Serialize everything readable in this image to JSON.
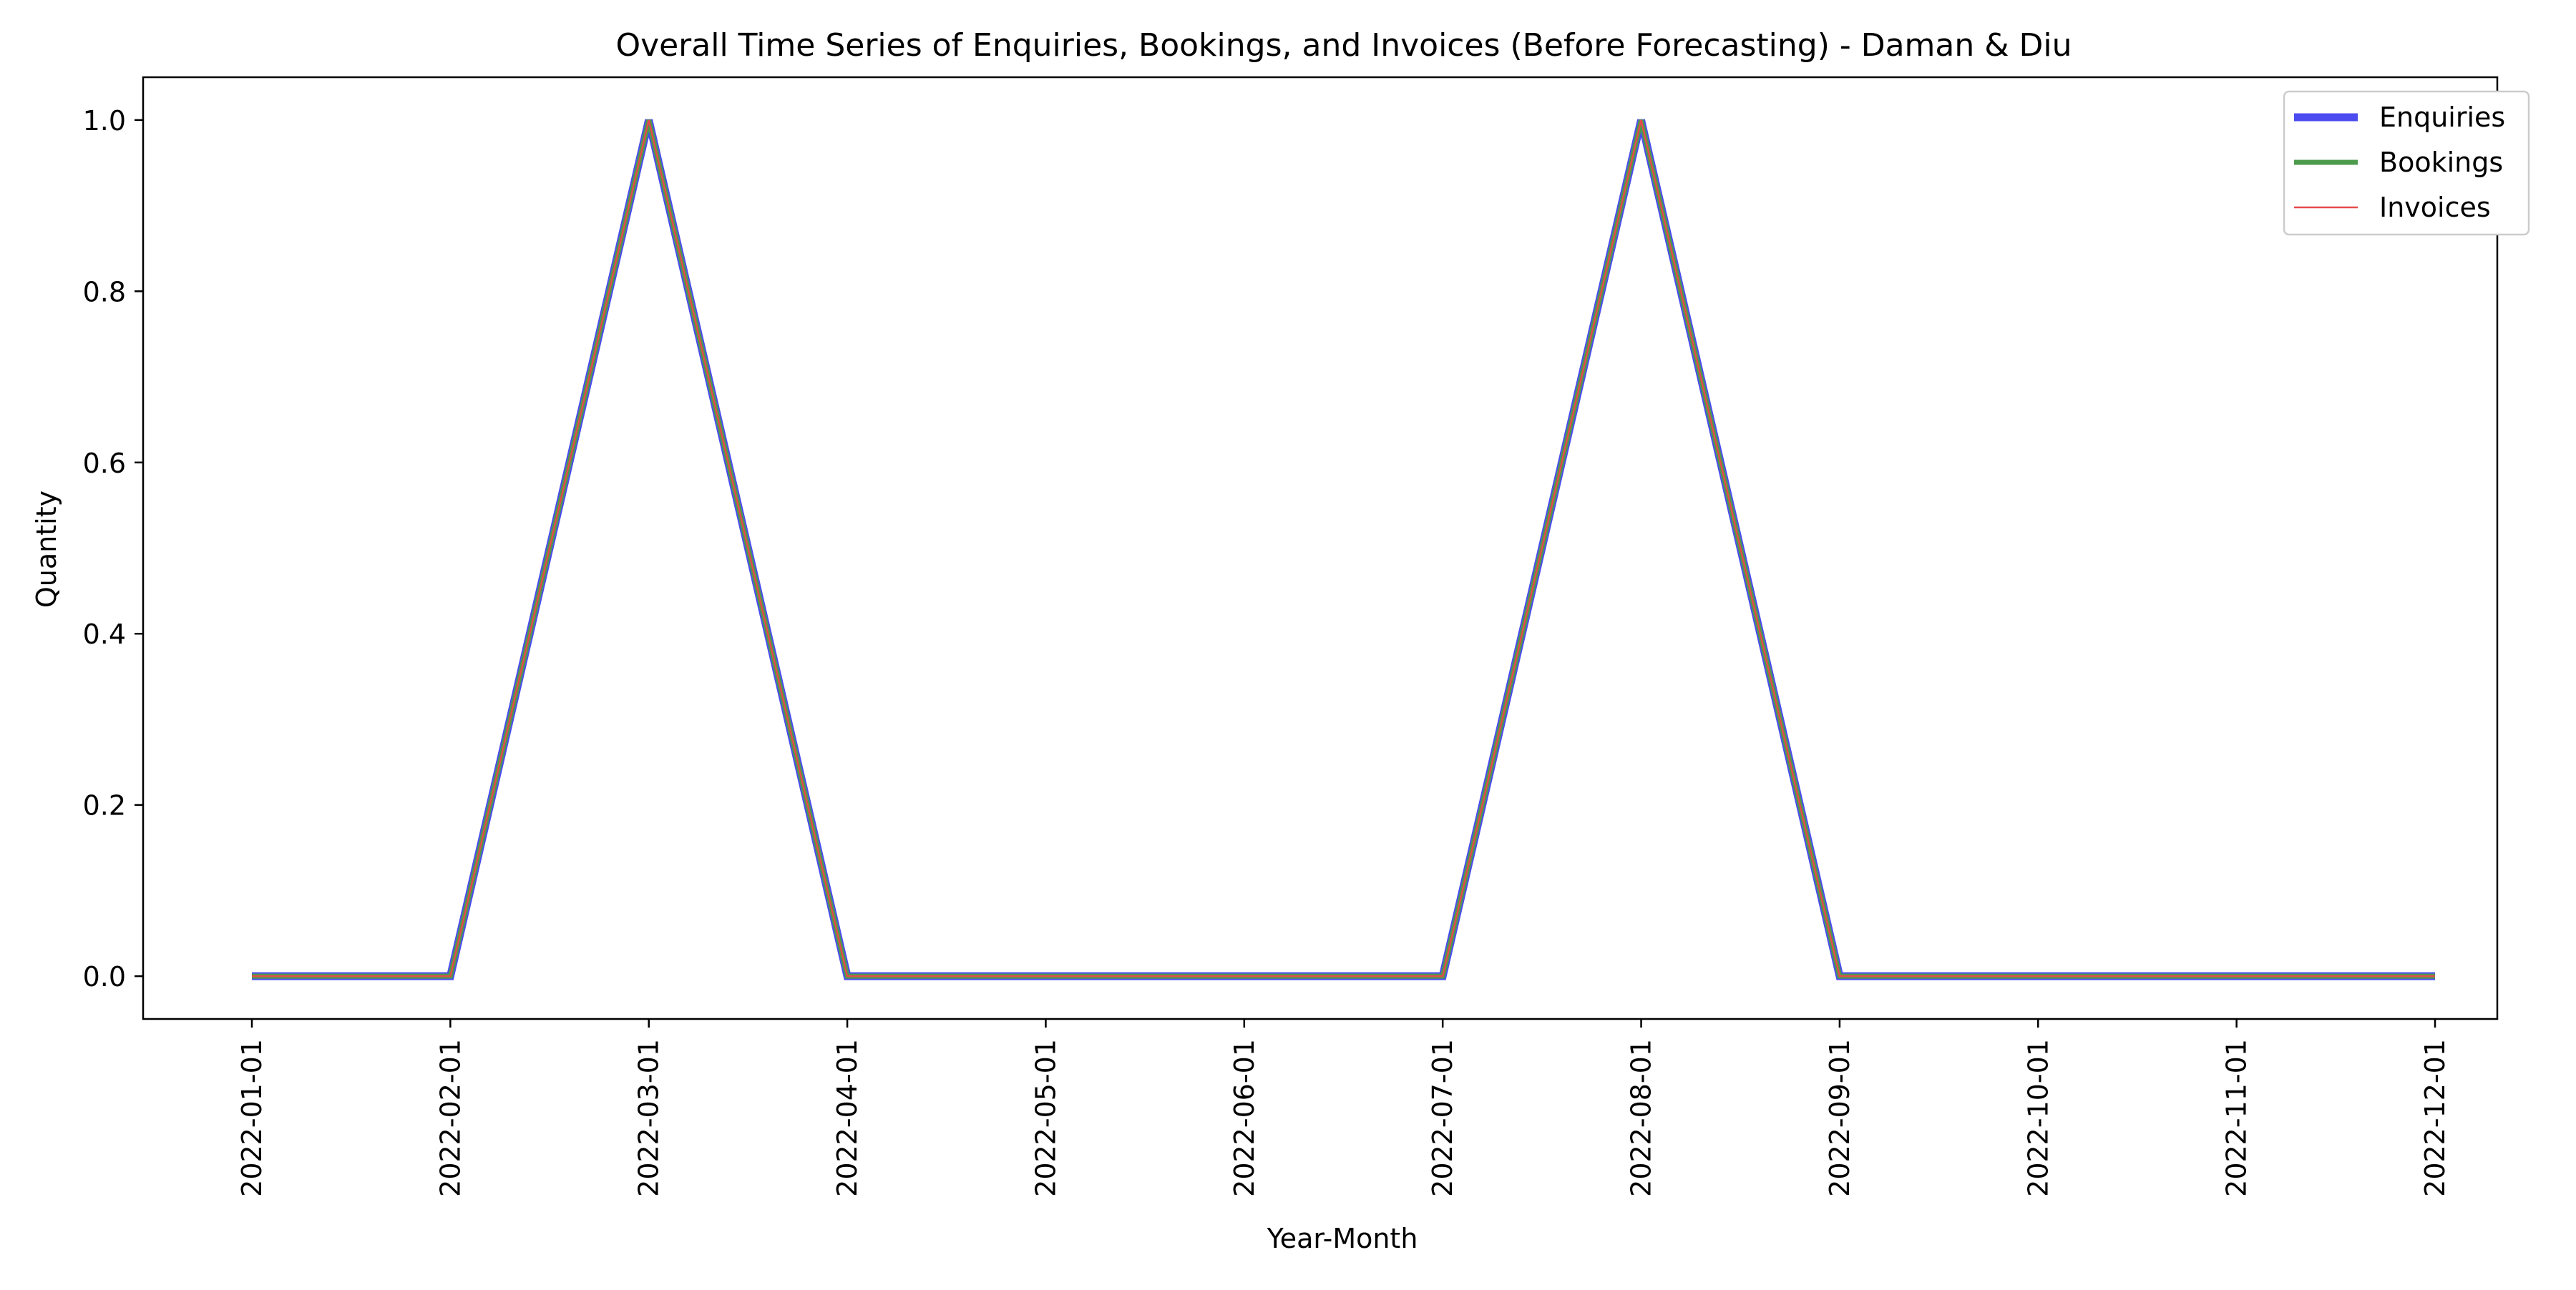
{
  "chart_data": {
    "type": "line",
    "title": "Overall Time Series of Enquiries, Bookings, and Invoices (Before Forecasting) - Daman & Diu",
    "xlabel": "Year-Month",
    "ylabel": "Quantity",
    "x": [
      "2022-01-01",
      "2022-02-01",
      "2022-03-01",
      "2022-04-01",
      "2022-05-01",
      "2022-06-01",
      "2022-07-01",
      "2022-08-01",
      "2022-09-01",
      "2022-10-01",
      "2022-11-01",
      "2022-12-01"
    ],
    "ylim": [
      -0.05,
      1.05
    ],
    "yticks": [
      "0.0",
      "0.2",
      "0.4",
      "0.6",
      "0.8",
      "1.0"
    ],
    "grid": false,
    "legend": "top-right",
    "series": [
      {
        "name": "Enquiries",
        "color": "#4b4bf0",
        "values": [
          0,
          0,
          1,
          0,
          0,
          0,
          0,
          1,
          0,
          0,
          0,
          0
        ]
      },
      {
        "name": "Bookings",
        "color": "#4c9a4c",
        "values": [
          0,
          0,
          1,
          0,
          0,
          0,
          0,
          1,
          0,
          0,
          0,
          0
        ]
      },
      {
        "name": "Invoices",
        "color": "#e64a4a",
        "values": [
          0,
          0,
          1,
          0,
          0,
          0,
          0,
          1,
          0,
          0,
          0,
          0
        ]
      }
    ]
  }
}
